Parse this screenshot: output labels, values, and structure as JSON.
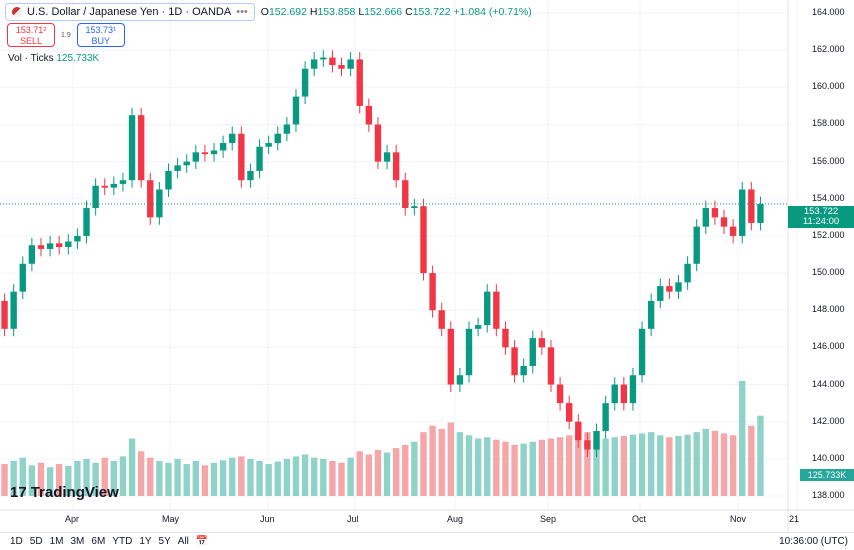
{
  "header": {
    "symbol": "U.S. Dollar / Japanese Yen · 1D · OANDA",
    "o_label": "O",
    "o": "152.692",
    "h_label": "H",
    "h": "153.858",
    "l_label": "L",
    "l": "152.666",
    "c_label": "C",
    "c": "153.722",
    "change": "+1.084 (+0.71%)"
  },
  "trade": {
    "sell_price": "153.71²",
    "sell_label": "SELL",
    "spread": "1.9",
    "buy_price": "153.73¹",
    "buy_label": "BUY"
  },
  "volume": {
    "label": "Vol · Ticks",
    "value": "125.733K"
  },
  "logo": "TradingView",
  "last_price": {
    "price": "153.722",
    "countdown": "11:24:00"
  },
  "bottom": {
    "ranges": [
      "1D",
      "5D",
      "1M",
      "3M",
      "6M",
      "YTD",
      "1Y",
      "5Y",
      "All"
    ],
    "time": "10:36:00 (UTC)"
  },
  "colors": {
    "up": "#089981",
    "down": "#f23645",
    "vol_up": "#8fd3c8",
    "vol_down": "#f5a6a8"
  },
  "chart_data": {
    "type": "candlestick",
    "ylim": [
      138,
      164
    ],
    "y_ticks": [
      "164.000",
      "162.000",
      "160.000",
      "158.000",
      "156.000",
      "154.000",
      "152.000",
      "150.000",
      "148.000",
      "146.000",
      "144.000",
      "142.000",
      "140.000",
      "138.000"
    ],
    "x_ticks": [
      "Apr",
      "May",
      "Jun",
      "Jul",
      "Aug",
      "Sep",
      "Oct",
      "Nov",
      "21"
    ],
    "start_close": 148.5,
    "closes": [
      147,
      149,
      150.5,
      151.5,
      151.3,
      151.6,
      151.4,
      151.7,
      152,
      153.5,
      154.7,
      154.6,
      154.8,
      155,
      158.5,
      155,
      153,
      154.5,
      155.5,
      155.8,
      156,
      156.5,
      156.4,
      156.6,
      157,
      157.5,
      155,
      155.5,
      156.8,
      157,
      157.5,
      158,
      159.5,
      161,
      161.5,
      161.6,
      161.2,
      161,
      161.5,
      159,
      158,
      156,
      156.5,
      155,
      153.5,
      153.6,
      150,
      148,
      147,
      144,
      144.5,
      147,
      147.2,
      149,
      147,
      146,
      144.5,
      145,
      146.5,
      146,
      144,
      143,
      142,
      141,
      140.5,
      141.5,
      143,
      144,
      143,
      144.5,
      147,
      148.5,
      149.3,
      149,
      149.5,
      150.5,
      152.5,
      153.5,
      153,
      152.5,
      152,
      154.5,
      152.7,
      153.722
    ],
    "volumes": [
      50,
      55,
      60,
      48,
      52,
      45,
      50,
      47,
      55,
      58,
      52,
      60,
      55,
      62,
      90,
      70,
      60,
      55,
      52,
      58,
      50,
      55,
      48,
      52,
      56,
      60,
      62,
      58,
      55,
      50,
      54,
      58,
      62,
      65,
      60,
      58,
      55,
      52,
      60,
      70,
      65,
      72,
      68,
      75,
      80,
      85,
      100,
      110,
      105,
      115,
      100,
      95,
      90,
      92,
      88,
      85,
      80,
      82,
      85,
      88,
      90,
      92,
      95,
      98,
      100,
      95,
      90,
      92,
      94,
      96,
      98,
      100,
      95,
      92,
      94,
      96,
      100,
      105,
      102,
      98,
      95,
      180,
      110,
      125.733
    ]
  }
}
